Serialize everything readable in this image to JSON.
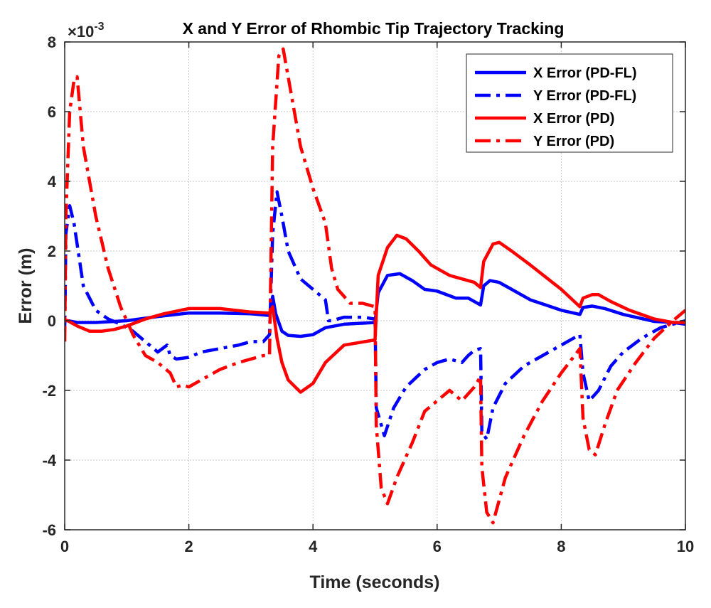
{
  "chart_data": {
    "type": "line",
    "title": "X and Y Error of Rhombic Tip Trajectory Tracking",
    "xlabel": "Time (seconds)",
    "ylabel": "Error (m)",
    "y_multiplier_base": "×10",
    "y_multiplier_exp": "-3",
    "xlim": [
      0,
      10
    ],
    "ylim": [
      -6,
      8
    ],
    "xticks": [
      0,
      2,
      4,
      6,
      8,
      10
    ],
    "yticks": [
      -6,
      -4,
      -2,
      0,
      2,
      4,
      6,
      8
    ],
    "grid": true,
    "legend_position": "top-right",
    "series": [
      {
        "name": "X Error (PD-FL)",
        "color": "#0000ff",
        "style": "solid",
        "x": [
          0,
          0.05,
          0.2,
          0.5,
          1.0,
          1.5,
          2.0,
          2.5,
          3.0,
          3.3,
          3.35,
          3.4,
          3.5,
          3.6,
          3.8,
          4.0,
          4.2,
          4.5,
          5.0,
          5.05,
          5.2,
          5.4,
          5.6,
          5.8,
          6.0,
          6.3,
          6.5,
          6.6,
          6.7,
          6.75,
          6.85,
          7.0,
          7.2,
          7.5,
          8.0,
          8.3,
          8.35,
          8.5,
          8.7,
          9.0,
          9.5,
          9.8,
          10.0
        ],
        "y": [
          0,
          0,
          -0.05,
          -0.05,
          0,
          0.12,
          0.22,
          0.22,
          0.2,
          0.15,
          0.7,
          0.2,
          -0.3,
          -0.42,
          -0.45,
          -0.4,
          -0.2,
          -0.1,
          -0.05,
          0.8,
          1.3,
          1.35,
          1.15,
          0.9,
          0.85,
          0.65,
          0.65,
          0.55,
          0.45,
          1.0,
          1.15,
          1.1,
          0.9,
          0.6,
          0.3,
          0.18,
          0.38,
          0.42,
          0.35,
          0.18,
          -0.02,
          -0.05,
          -0.1
        ]
      },
      {
        "name": "Y Error (PD-FL)",
        "color": "#0000ff",
        "style": "dashdot",
        "x": [
          0,
          0.02,
          0.08,
          0.15,
          0.3,
          0.5,
          0.7,
          0.9,
          1.1,
          1.3,
          1.5,
          1.65,
          1.7,
          1.8,
          2.0,
          2.2,
          2.5,
          2.8,
          3.0,
          3.2,
          3.3,
          3.35,
          3.42,
          3.5,
          3.6,
          3.8,
          4.0,
          4.2,
          4.25,
          4.3,
          4.5,
          4.8,
          5.0,
          5.02,
          5.15,
          5.3,
          5.5,
          5.8,
          6.0,
          6.2,
          6.4,
          6.5,
          6.6,
          6.7,
          6.72,
          6.8,
          6.9,
          7.1,
          7.4,
          7.7,
          8.0,
          8.3,
          8.35,
          8.45,
          8.6,
          8.8,
          9.0,
          9.3,
          9.6,
          10.0
        ],
        "y": [
          -0.3,
          2.5,
          3.3,
          2.8,
          1.0,
          0.3,
          0.05,
          -0.1,
          -0.3,
          -0.6,
          -0.9,
          -0.7,
          -1.0,
          -1.1,
          -1.05,
          -0.9,
          -0.8,
          -0.7,
          -0.6,
          -0.6,
          -0.4,
          2.5,
          3.7,
          3.0,
          2.0,
          1.2,
          0.9,
          0.6,
          0.0,
          0.0,
          0.1,
          0.1,
          0.05,
          -2.5,
          -3.3,
          -2.5,
          -1.9,
          -1.4,
          -1.2,
          -1.1,
          -1.2,
          -1.0,
          -0.85,
          -0.8,
          -3.2,
          -3.4,
          -2.5,
          -1.8,
          -1.3,
          -1.0,
          -0.7,
          -0.4,
          -1.5,
          -2.3,
          -2.0,
          -1.3,
          -0.9,
          -0.5,
          -0.2,
          0.0
        ]
      },
      {
        "name": "X Error (PD)",
        "color": "#ff0000",
        "style": "solid",
        "x": [
          0,
          0.05,
          0.2,
          0.4,
          0.6,
          0.8,
          1.0,
          1.3,
          1.6,
          2.0,
          2.5,
          3.0,
          3.3,
          3.35,
          3.42,
          3.5,
          3.6,
          3.8,
          4.0,
          4.2,
          4.5,
          5.0,
          5.05,
          5.2,
          5.35,
          5.5,
          5.7,
          5.9,
          6.2,
          6.4,
          6.6,
          6.7,
          6.75,
          6.9,
          7.0,
          7.2,
          7.5,
          8.0,
          8.3,
          8.35,
          8.5,
          8.6,
          8.8,
          9.1,
          9.5,
          9.8,
          10.0
        ],
        "y": [
          0.0,
          0.0,
          -0.15,
          -0.3,
          -0.3,
          -0.25,
          -0.15,
          0.05,
          0.2,
          0.35,
          0.35,
          0.25,
          0.22,
          0.4,
          -0.5,
          -1.2,
          -1.7,
          -2.05,
          -1.8,
          -1.2,
          -0.7,
          -0.55,
          1.3,
          2.1,
          2.45,
          2.35,
          2.0,
          1.6,
          1.3,
          1.2,
          1.1,
          0.95,
          1.7,
          2.2,
          2.25,
          2.0,
          1.6,
          0.9,
          0.4,
          0.65,
          0.75,
          0.75,
          0.55,
          0.3,
          0.05,
          -0.05,
          -0.05
        ]
      },
      {
        "name": "Y Error (PD)",
        "color": "#ff0000",
        "style": "dashdot",
        "x": [
          0,
          0.02,
          0.08,
          0.15,
          0.2,
          0.3,
          0.5,
          0.7,
          0.9,
          1.1,
          1.3,
          1.5,
          1.7,
          1.8,
          1.9,
          2.0,
          2.2,
          2.5,
          2.8,
          3.0,
          3.2,
          3.3,
          3.35,
          3.45,
          3.52,
          3.6,
          3.8,
          4.0,
          4.2,
          4.3,
          4.4,
          4.6,
          4.8,
          5.0,
          5.02,
          5.1,
          5.2,
          5.35,
          5.6,
          5.8,
          6.0,
          6.2,
          6.4,
          6.6,
          6.7,
          6.72,
          6.8,
          6.9,
          7.1,
          7.4,
          7.7,
          8.0,
          8.3,
          8.35,
          8.45,
          8.55,
          8.7,
          8.9,
          9.2,
          9.5,
          9.8,
          10.0
        ],
        "y": [
          -0.6,
          3.0,
          6.0,
          6.9,
          7.0,
          5.0,
          3.0,
          1.5,
          0.4,
          -0.4,
          -1.0,
          -1.2,
          -1.5,
          -1.9,
          -1.85,
          -1.9,
          -1.7,
          -1.4,
          -1.2,
          -1.1,
          -1.0,
          -1.0,
          5.0,
          7.6,
          7.8,
          7.0,
          5.0,
          3.8,
          2.8,
          1.5,
          0.9,
          0.5,
          0.5,
          0.4,
          -3.0,
          -4.8,
          -5.25,
          -4.5,
          -3.5,
          -2.6,
          -2.3,
          -2.0,
          -2.3,
          -1.9,
          -1.6,
          -4.2,
          -5.5,
          -5.8,
          -4.5,
          -3.3,
          -2.3,
          -1.5,
          -0.8,
          -2.8,
          -3.7,
          -3.85,
          -3.0,
          -2.0,
          -1.2,
          -0.5,
          0.0,
          0.3
        ]
      }
    ]
  }
}
